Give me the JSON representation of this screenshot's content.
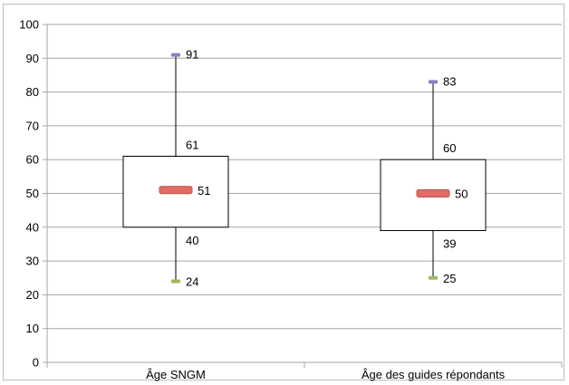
{
  "chart_data": {
    "type": "box",
    "categories": [
      "Âge SNGM",
      "Âge des guides répondants"
    ],
    "boxes": [
      {
        "name": "Âge SNGM",
        "min": 24,
        "q1": 40,
        "median": 51,
        "q3": 61,
        "max": 91
      },
      {
        "name": "Âge des guides répondants",
        "min": 25,
        "q1": 39,
        "median": 50,
        "q3": 60,
        "max": 83
      }
    ],
    "ylim": [
      0,
      100
    ],
    "yticks": [
      "0",
      "10",
      "20",
      "30",
      "40",
      "50",
      "60",
      "70",
      "80",
      "90",
      "100"
    ],
    "grid": true,
    "legend": "none",
    "colors": {
      "grid": "#a6a6a6",
      "box_fill": "#ffffff",
      "box_stroke": "#000000",
      "median": "#e26b66",
      "max_marker": "#8e7cc3",
      "min_marker": "#9bbb59"
    }
  }
}
